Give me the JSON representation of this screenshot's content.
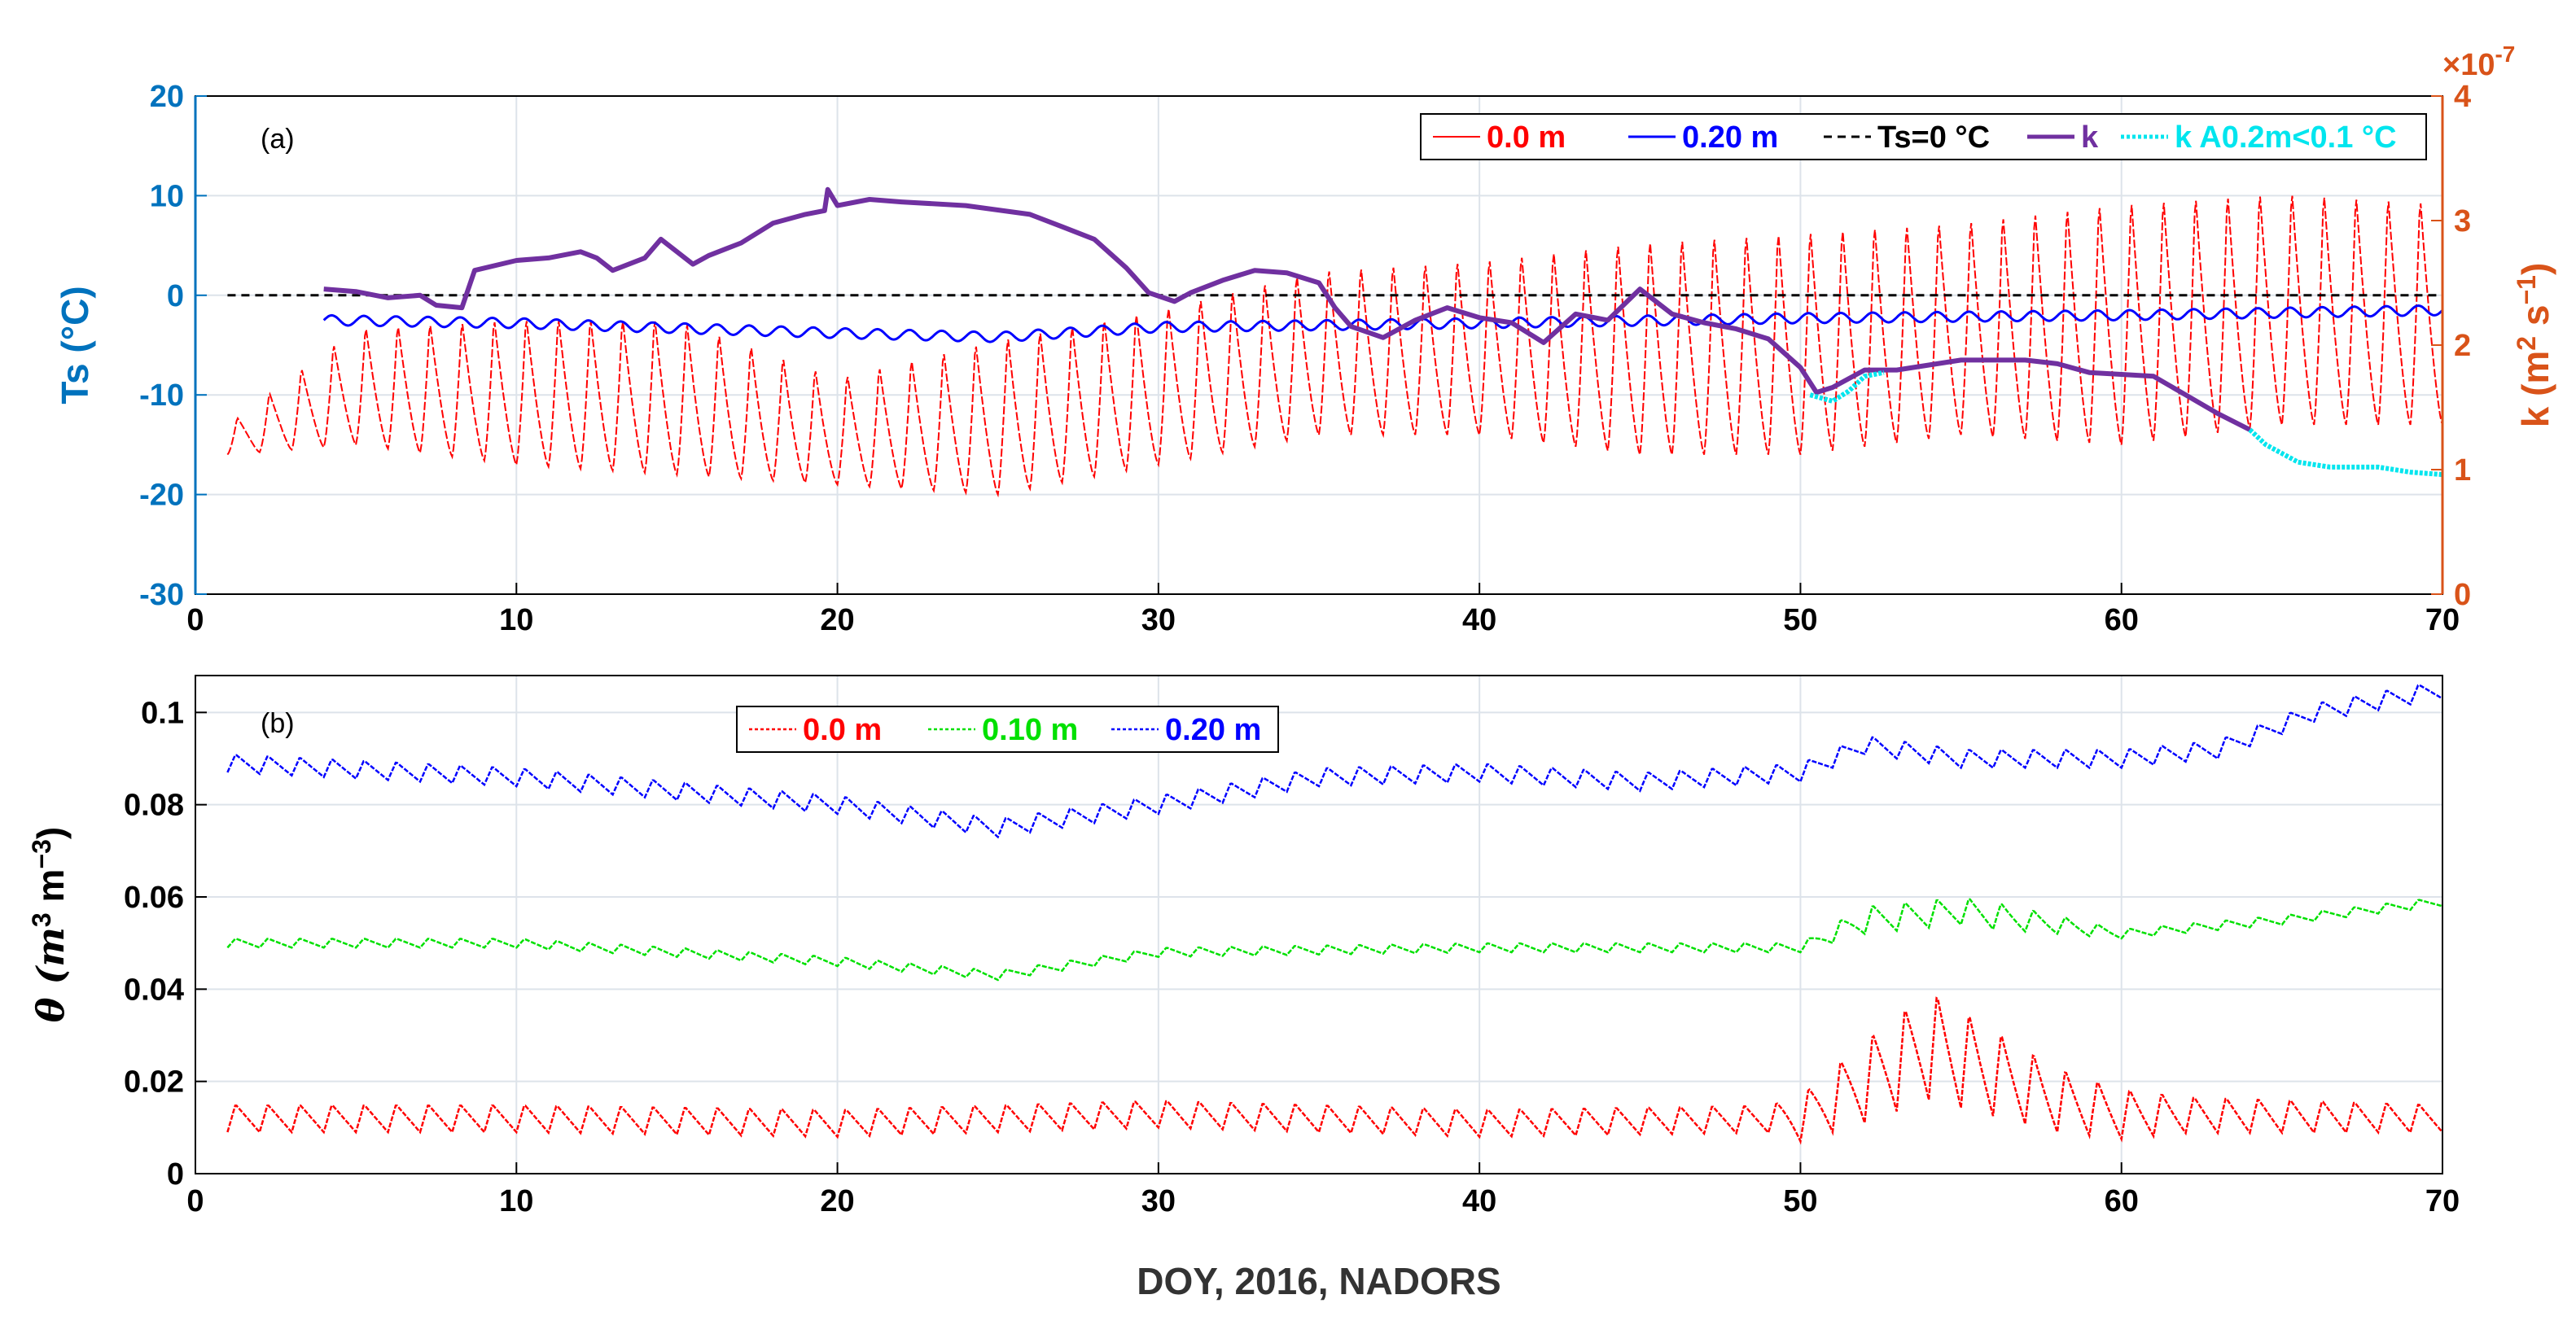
{
  "figure": {
    "xlabel": "DOY, 2016, NADORS"
  },
  "colors": {
    "red": "#ff0000",
    "blue": "#0000ff",
    "green": "#00e000",
    "purple": "#7030a0",
    "cyan": "#00e5ee",
    "left_axis": "#0072bd",
    "right_axis": "#d95319",
    "grid": "#dde3ea"
  },
  "chart_data": [
    {
      "panel_label": "(a)",
      "type": "line",
      "xlim": [
        0,
        70
      ],
      "xticks": [
        0,
        10,
        20,
        30,
        40,
        50,
        60,
        70
      ],
      "ylabel_left": "Ts (°C)",
      "ylim_left": [
        -30,
        20
      ],
      "yticks_left": [
        -30,
        -20,
        -10,
        0,
        10,
        20
      ],
      "ylabel_right": "k (m2 s−1)",
      "ylabel_right_parts": {
        "base": "k (m",
        "sup1": "2",
        "mid": " s",
        "sup2": "−1",
        "end": ")"
      },
      "ylim_right": [
        0,
        4
      ],
      "yticks_right": [
        0,
        1,
        2,
        3,
        4
      ],
      "right_multiplier": "×10",
      "right_multiplier_exp": "-7",
      "legend": [
        "0.0 m",
        "0.20 m",
        "Ts=0 °C",
        "k",
        "k A0.2m<0.1 °C"
      ],
      "series": [
        {
          "name": "0.0 m",
          "axis": "left",
          "style": "diurnal",
          "x_range": [
            1,
            70
          ],
          "period": 1,
          "min_env": [
            [
              1,
              -16
            ],
            [
              5,
              -15
            ],
            [
              10,
              -17
            ],
            [
              15,
              -18
            ],
            [
              20,
              -19
            ],
            [
              25,
              -20
            ],
            [
              30,
              -17
            ],
            [
              35,
              -14
            ],
            [
              40,
              -14
            ],
            [
              45,
              -16
            ],
            [
              50,
              -16
            ],
            [
              55,
              -14
            ],
            [
              60,
              -15
            ],
            [
              65,
              -13
            ],
            [
              70,
              -13
            ]
          ],
          "max_env": [
            [
              1,
              -13
            ],
            [
              5,
              -3
            ],
            [
              10,
              -2
            ],
            [
              15,
              -2
            ],
            [
              20,
              -8
            ],
            [
              25,
              -4
            ],
            [
              30,
              -1
            ],
            [
              35,
              3
            ],
            [
              40,
              4
            ],
            [
              45,
              6
            ],
            [
              50,
              7
            ],
            [
              55,
              8
            ],
            [
              60,
              10
            ],
            [
              65,
              11
            ],
            [
              70,
              10
            ]
          ]
        },
        {
          "name": "0.20 m",
          "axis": "left",
          "style": "wavy",
          "x_range": [
            4,
            70
          ],
          "amp": 0.5,
          "points": [
            [
              4,
              -2.5
            ],
            [
              10,
              -2.8
            ],
            [
              20,
              -3.8
            ],
            [
              25,
              -4.2
            ],
            [
              30,
              -3.2
            ],
            [
              40,
              -2.8
            ],
            [
              50,
              -2.3
            ],
            [
              60,
              -2
            ],
            [
              70,
              -1.5
            ]
          ]
        },
        {
          "name": "Ts=0 °C",
          "axis": "left",
          "style": "dashed",
          "points": [
            [
              1,
              0
            ],
            [
              70,
              0
            ]
          ]
        },
        {
          "name": "k",
          "axis": "right",
          "style": "thick",
          "points": [
            [
              4,
              2.45
            ],
            [
              5,
              2.43
            ],
            [
              6,
              2.38
            ],
            [
              7,
              2.4
            ],
            [
              7.5,
              2.32
            ],
            [
              8.3,
              2.3
            ],
            [
              8.7,
              2.6
            ],
            [
              10,
              2.68
            ],
            [
              11,
              2.7
            ],
            [
              12,
              2.75
            ],
            [
              12.5,
              2.7
            ],
            [
              13,
              2.6
            ],
            [
              14,
              2.7
            ],
            [
              14.5,
              2.85
            ],
            [
              15,
              2.75
            ],
            [
              15.5,
              2.65
            ],
            [
              16,
              2.72
            ],
            [
              17,
              2.82
            ],
            [
              18,
              2.98
            ],
            [
              19,
              3.05
            ],
            [
              19.6,
              3.08
            ],
            [
              19.7,
              3.25
            ],
            [
              20,
              3.12
            ],
            [
              21,
              3.17
            ],
            [
              22,
              3.15
            ],
            [
              24,
              3.12
            ],
            [
              26,
              3.05
            ],
            [
              27,
              2.95
            ],
            [
              28,
              2.85
            ],
            [
              29,
              2.62
            ],
            [
              29.7,
              2.42
            ],
            [
              30.5,
              2.35
            ],
            [
              31,
              2.42
            ],
            [
              32,
              2.52
            ],
            [
              33,
              2.6
            ],
            [
              34,
              2.58
            ],
            [
              35,
              2.5
            ],
            [
              35.5,
              2.3
            ],
            [
              36,
              2.15
            ],
            [
              37,
              2.06
            ],
            [
              38,
              2.2
            ],
            [
              39,
              2.3
            ],
            [
              40,
              2.22
            ],
            [
              41,
              2.18
            ],
            [
              41.5,
              2.1
            ],
            [
              42,
              2.02
            ],
            [
              43,
              2.25
            ],
            [
              44,
              2.2
            ],
            [
              45,
              2.45
            ],
            [
              46,
              2.25
            ],
            [
              47,
              2.18
            ],
            [
              48,
              2.13
            ],
            [
              49,
              2.05
            ],
            [
              50,
              1.82
            ],
            [
              50.5,
              1.62
            ],
            [
              51,
              1.66
            ],
            [
              52,
              1.8
            ],
            [
              53,
              1.8
            ],
            [
              55,
              1.88
            ],
            [
              57,
              1.88
            ],
            [
              58,
              1.85
            ],
            [
              59,
              1.78
            ],
            [
              61,
              1.75
            ],
            [
              62,
              1.6
            ],
            [
              63,
              1.45
            ],
            [
              64,
              1.32
            ]
          ]
        },
        {
          "name": "k A0.2m<0.1 °C",
          "axis": "right",
          "style": "dots",
          "points": [
            [
              50.3,
              1.6
            ],
            [
              51,
              1.55
            ],
            [
              51.5,
              1.63
            ],
            [
              52,
              1.75
            ],
            [
              52.6,
              1.78
            ],
            [
              64,
              1.32
            ],
            [
              64.5,
              1.2
            ],
            [
              65.5,
              1.06
            ],
            [
              66.5,
              1.02
            ],
            [
              68,
              1.02
            ],
            [
              69,
              0.98
            ],
            [
              70,
              0.96
            ]
          ]
        }
      ]
    },
    {
      "panel_label": "(b)",
      "type": "line",
      "xlim": [
        0,
        70
      ],
      "xticks": [
        0,
        10,
        20,
        30,
        40,
        50,
        60,
        70
      ],
      "xticklabels": [
        "0",
        "10",
        "20",
        "30",
        "40",
        "50",
        "60",
        "70"
      ],
      "ylim": [
        0,
        0.108
      ],
      "yticks": [
        0,
        0.02,
        0.04,
        0.06,
        0.08,
        0.1
      ],
      "yticklabels": [
        "0",
        "0.02",
        "0.04",
        "0.06",
        "0.08",
        "0.1"
      ],
      "ylabel": "θ (m3 m−3)",
      "ylabel_parts": {
        "base": "θ (m",
        "sup1": "3",
        "mid": " m",
        "sup2": "−3",
        "end": ")"
      },
      "legend": [
        "0.0 m",
        "0.10 m",
        "0.20 m"
      ],
      "series": [
        {
          "name": "0.0 m",
          "style": "saw",
          "x_range": [
            1,
            70
          ],
          "points": [
            [
              1,
              0.012
            ],
            [
              10,
              0.012
            ],
            [
              20,
              0.011
            ],
            [
              30,
              0.013
            ],
            [
              40,
              0.011
            ],
            [
              50,
              0.012
            ],
            [
              52,
              0.02
            ],
            [
              54,
              0.028
            ],
            [
              56,
              0.022
            ],
            [
              58,
              0.016
            ],
            [
              60,
              0.013
            ],
            [
              70,
              0.012
            ]
          ],
          "amps": [
            [
              1,
              0.006
            ],
            [
              49,
              0.006
            ],
            [
              52,
              0.018
            ],
            [
              54,
              0.024
            ],
            [
              58,
              0.014
            ],
            [
              62,
              0.008
            ],
            [
              70,
              0.006
            ]
          ]
        },
        {
          "name": "0.10 m",
          "style": "saw",
          "x_range": [
            1,
            70
          ],
          "points": [
            [
              1,
              0.05
            ],
            [
              10,
              0.05
            ],
            [
              20,
              0.046
            ],
            [
              25,
              0.043
            ],
            [
              30,
              0.048
            ],
            [
              40,
              0.049
            ],
            [
              50,
              0.049
            ],
            [
              52,
              0.055
            ],
            [
              55,
              0.057
            ],
            [
              57,
              0.055
            ],
            [
              60,
              0.052
            ],
            [
              65,
              0.055
            ],
            [
              70,
              0.059
            ]
          ],
          "amps": [
            [
              1,
              0.002
            ],
            [
              50,
              0.002
            ],
            [
              52,
              0.006
            ],
            [
              56,
              0.006
            ],
            [
              60,
              0.002
            ],
            [
              70,
              0.002
            ]
          ]
        },
        {
          "name": "0.20 m",
          "style": "saw",
          "x_range": [
            1,
            70
          ],
          "points": [
            [
              1,
              0.089
            ],
            [
              10,
              0.086
            ],
            [
              20,
              0.08
            ],
            [
              25,
              0.075
            ],
            [
              30,
              0.08
            ],
            [
              35,
              0.086
            ],
            [
              40,
              0.087
            ],
            [
              45,
              0.085
            ],
            [
              50,
              0.087
            ],
            [
              52,
              0.093
            ],
            [
              55,
              0.09
            ],
            [
              60,
              0.09
            ],
            [
              63,
              0.092
            ],
            [
              66,
              0.1
            ],
            [
              70,
              0.105
            ]
          ],
          "amps": [
            [
              1,
              0.004
            ],
            [
              70,
              0.004
            ]
          ]
        }
      ]
    }
  ]
}
